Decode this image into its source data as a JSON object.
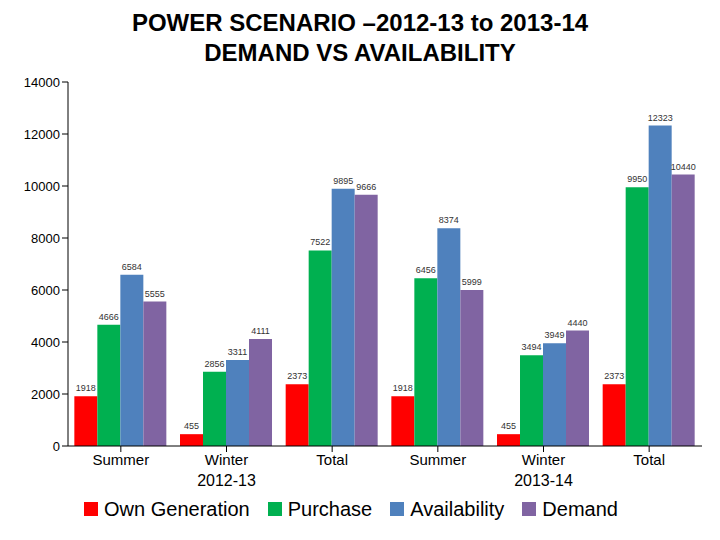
{
  "chart_data": {
    "type": "bar",
    "title": "POWER SCENARIO –2012-13 to 2013-14",
    "subtitle": "DEMAND VS AVAILABILITY",
    "categories": [
      "Summer",
      "Winter",
      "Total",
      "Summer",
      "Winter",
      "Total"
    ],
    "category_groups": [
      "2012-13",
      "2013-14"
    ],
    "series": [
      {
        "name": "Own Generation",
        "color": "#FF0000",
        "values": [
          1918,
          455,
          2373,
          1918,
          455,
          2373
        ]
      },
      {
        "name": "Purchase",
        "color": "#00B050",
        "values": [
          4666,
          2856,
          7522,
          6456,
          3494,
          9950
        ]
      },
      {
        "name": "Availability",
        "color": "#4F81BD",
        "values": [
          6584,
          3311,
          9895,
          8374,
          3949,
          12323
        ]
      },
      {
        "name": "Demand",
        "color": "#8064A2",
        "values": [
          5555,
          4111,
          9666,
          5999,
          4440,
          10440
        ]
      }
    ],
    "ylim": [
      0,
      14000
    ],
    "yticks": [
      0,
      2000,
      4000,
      6000,
      8000,
      10000,
      12000,
      14000
    ],
    "grid": false,
    "data_labels": true,
    "legend": "bottom"
  }
}
